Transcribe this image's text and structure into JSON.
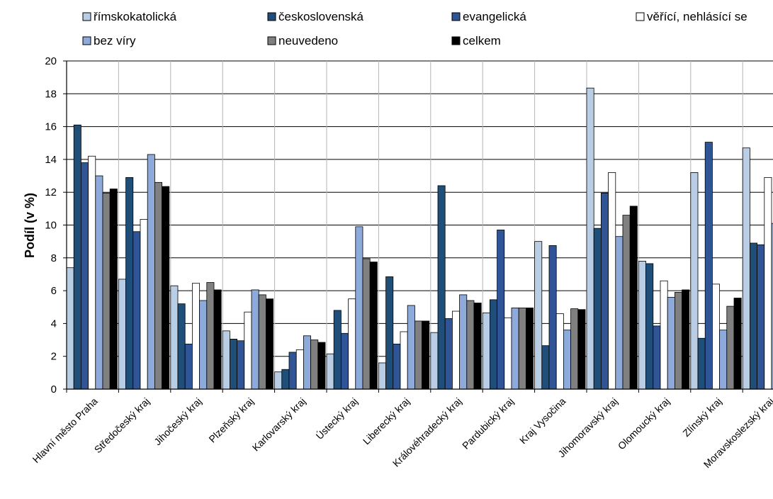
{
  "chart_data": {
    "type": "bar",
    "title": "",
    "xlabel": "",
    "ylabel": "Podíl (v %)",
    "ylim": [
      0,
      20
    ],
    "yticks": [
      0,
      2,
      4,
      6,
      8,
      10,
      12,
      14,
      16,
      18,
      20
    ],
    "grid": true,
    "legend_position": "top",
    "categories": [
      "Hlavní město Praha",
      "Středočeský kraj",
      "Jihočeský kraj",
      "Plzeňský kraj",
      "Karlovarský kraj",
      "Ústecký kraj",
      "Liberecký kraj",
      "Královéhradecký kraj",
      "Pardubický kraj",
      "Kraj Vysočina",
      "Jihomoravský kraj",
      "Olomoucký kraj",
      "Zlínský kraj",
      "Moravskoslezský kraj"
    ],
    "series": [
      {
        "name": "římskokatolická",
        "color": "#b9cde5",
        "values": [
          7.4,
          6.7,
          6.3,
          3.55,
          1.05,
          2.15,
          1.6,
          3.45,
          4.65,
          9.0,
          18.35,
          7.8,
          13.2,
          14.7
        ]
      },
      {
        "name": "československá",
        "color": "#1f4e79",
        "values": [
          16.1,
          12.9,
          5.2,
          3.05,
          1.2,
          4.8,
          6.85,
          12.4,
          5.45,
          2.65,
          9.8,
          7.65,
          3.1,
          8.9
        ]
      },
      {
        "name": "evangelická",
        "color": "#2f5597",
        "values": [
          13.8,
          9.6,
          2.75,
          2.95,
          2.25,
          3.4,
          2.75,
          4.3,
          9.7,
          8.75,
          11.95,
          3.85,
          15.05,
          8.8
        ]
      },
      {
        "name": "věřící, nehlásící se",
        "color": "#ffffff",
        "values": [
          14.2,
          10.35,
          6.45,
          4.7,
          2.4,
          5.5,
          3.5,
          4.75,
          4.35,
          4.6,
          13.2,
          6.6,
          6.4,
          12.9
        ]
      },
      {
        "name": "bez víry",
        "color": "#8eaadb",
        "values": [
          13.0,
          14.3,
          5.4,
          6.05,
          3.25,
          9.9,
          5.1,
          5.75,
          4.95,
          3.6,
          9.3,
          5.6,
          3.6,
          10.1
        ]
      },
      {
        "name": "neuvedeno",
        "color": "#808080",
        "values": [
          11.95,
          12.6,
          6.5,
          5.75,
          3.0,
          7.95,
          4.15,
          5.4,
          4.95,
          4.9,
          10.6,
          5.9,
          5.05,
          null
        ]
      },
      {
        "name": "celkem",
        "color": "#000000",
        "values": [
          12.2,
          12.35,
          6.05,
          5.5,
          2.85,
          7.75,
          4.15,
          5.25,
          4.95,
          4.85,
          11.15,
          6.05,
          5.55,
          null
        ]
      }
    ]
  }
}
